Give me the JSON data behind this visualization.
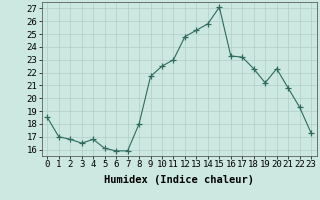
{
  "x": [
    0,
    1,
    2,
    3,
    4,
    5,
    6,
    7,
    8,
    9,
    10,
    11,
    12,
    13,
    14,
    15,
    16,
    17,
    18,
    19,
    20,
    21,
    22,
    23
  ],
  "y": [
    18.5,
    17.0,
    16.8,
    16.5,
    16.8,
    16.1,
    15.9,
    15.9,
    18.0,
    21.7,
    22.5,
    23.0,
    24.8,
    25.3,
    25.8,
    27.1,
    23.3,
    23.2,
    22.3,
    21.2,
    22.3,
    20.8,
    19.3,
    17.3
  ],
  "line_color": "#2e6b5e",
  "marker": "+",
  "marker_size": 4,
  "bg_color": "#cce8e0",
  "grid_color": "#b0cfc8",
  "xlabel": "Humidex (Indice chaleur)",
  "xlim": [
    -0.5,
    23.5
  ],
  "ylim": [
    15.5,
    27.5
  ],
  "yticks": [
    16,
    17,
    18,
    19,
    20,
    21,
    22,
    23,
    24,
    25,
    26,
    27
  ],
  "xtick_labels": [
    "0",
    "1",
    "2",
    "3",
    "4",
    "5",
    "6",
    "7",
    "8",
    "9",
    "10",
    "11",
    "12",
    "13",
    "14",
    "15",
    "16",
    "17",
    "18",
    "19",
    "20",
    "21",
    "22",
    "23"
  ],
  "tick_fontsize": 6.5,
  "label_fontsize": 7.5
}
